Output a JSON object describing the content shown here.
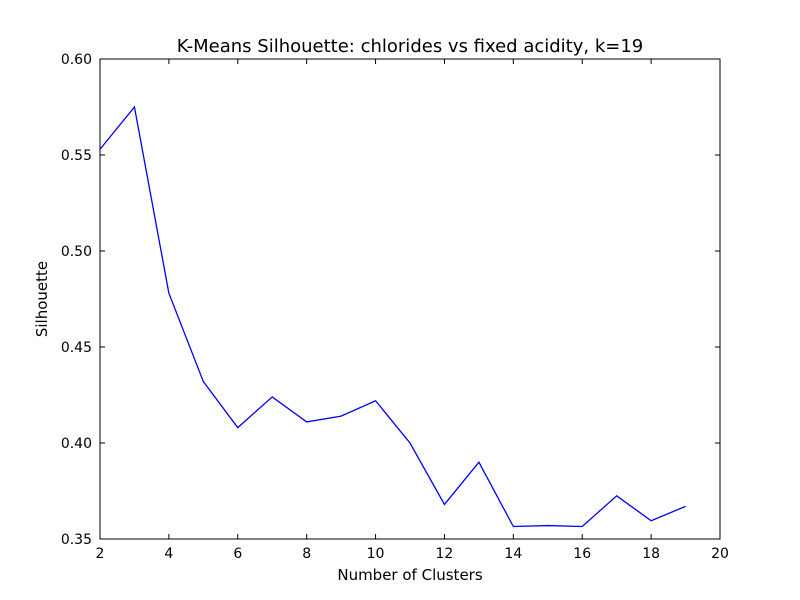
{
  "chart_data": {
    "type": "line",
    "title": "K-Means Silhouette: chlorides vs fixed acidity, k=19",
    "xlabel": "Number of Clusters",
    "ylabel": "Silhouette",
    "xlim": [
      2,
      20
    ],
    "ylim": [
      0.35,
      0.6
    ],
    "xticks": [
      2,
      4,
      6,
      8,
      10,
      12,
      14,
      16,
      18,
      20
    ],
    "yticks": [
      0.35,
      0.4,
      0.45,
      0.5,
      0.55,
      0.6
    ],
    "ytick_labels": [
      "0.35",
      "0.40",
      "0.45",
      "0.50",
      "0.55",
      "0.60"
    ],
    "grid": false,
    "series": [
      {
        "color": "#0000ff",
        "x": [
          2,
          3,
          4,
          5,
          6,
          7,
          8,
          9,
          10,
          11,
          12,
          13,
          14,
          15,
          16,
          17,
          18,
          19
        ],
        "y": [
          0.553,
          0.575,
          0.478,
          0.432,
          0.408,
          0.424,
          0.411,
          0.414,
          0.422,
          0.4,
          0.368,
          0.39,
          0.3565,
          0.357,
          0.3565,
          0.3725,
          0.3595,
          0.367
        ]
      }
    ]
  }
}
